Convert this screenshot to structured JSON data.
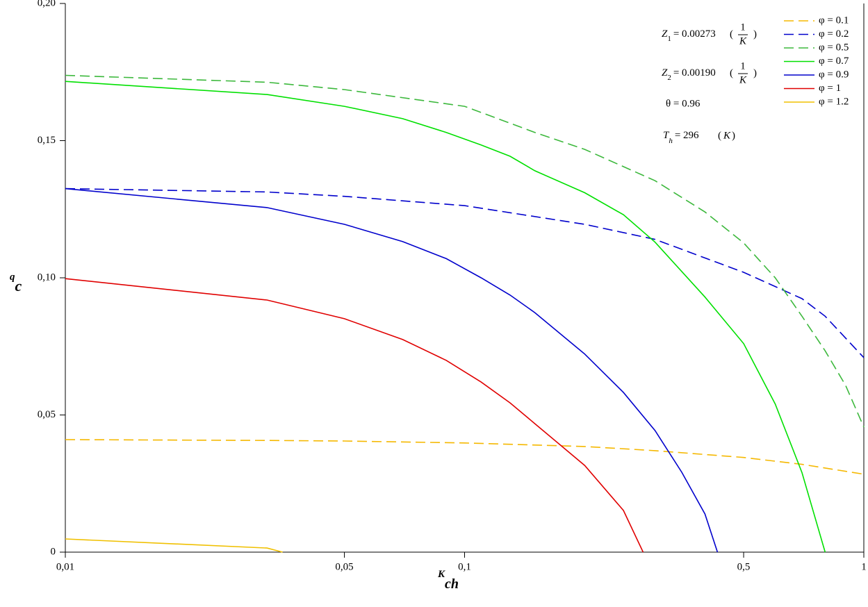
{
  "chart_data": {
    "type": "line",
    "x_label": {
      "text": "K",
      "sub": "ch"
    },
    "y_label": {
      "text": "q",
      "sub": "c"
    },
    "xscale": "log",
    "xlim": [
      0.01,
      1
    ],
    "xticks": [
      {
        "value": 0.01,
        "label": "0,01"
      },
      {
        "value": 0.05,
        "label": "0,05"
      },
      {
        "value": 0.1,
        "label": "0,1"
      },
      {
        "value": 0.5,
        "label": "0,5"
      },
      1
    ],
    "ylim": [
      0,
      0.2
    ],
    "yticks": [
      0,
      {
        "value": 0.05,
        "label": "0,05"
      },
      {
        "value": 0.1,
        "label": "0,10"
      },
      {
        "value": 0.15,
        "label": "0,15"
      },
      {
        "value": 0.2,
        "label": "0,20"
      }
    ],
    "legend": "upper right",
    "annotations": [
      {
        "symbol": "Z",
        "sub": "1",
        "value": "= 0.00273",
        "num": "1",
        "den": "K"
      },
      {
        "symbol": "Z",
        "sub": "2",
        "value": "= 0.00190",
        "num": "1",
        "den": "K"
      },
      {
        "text": "θ = 0.96"
      },
      {
        "symbol": "T",
        "sub": "h",
        "value": "= 296",
        "unit": "K"
      }
    ],
    "series": [
      {
        "name": "φ = 0.1",
        "color": "#f5b800",
        "dash": true,
        "x": [
          0.01,
          0.032,
          0.05,
          0.1,
          0.2,
          0.3,
          0.5,
          0.7,
          1
        ],
        "values": [
          0.041,
          0.0407,
          0.0405,
          0.0398,
          0.0385,
          0.037,
          0.0345,
          0.032,
          0.0284
        ]
      },
      {
        "name": "φ = 0.2",
        "color": "#0000cc",
        "dash": true,
        "x": [
          0.01,
          0.032,
          0.05,
          0.1,
          0.2,
          0.3,
          0.5,
          0.7,
          0.8,
          1
        ],
        "values": [
          0.1325,
          0.1313,
          0.1297,
          0.1263,
          0.1195,
          0.114,
          0.102,
          0.0924,
          0.086,
          0.0709
        ]
      },
      {
        "name": "φ = 0.5",
        "color": "#3cb83c",
        "dash": true,
        "x": [
          0.01,
          0.032,
          0.05,
          0.1,
          0.15,
          0.2,
          0.3,
          0.4,
          0.5,
          0.6,
          0.7,
          0.8,
          0.9,
          1
        ],
        "values": [
          0.1738,
          0.1713,
          0.1686,
          0.1625,
          0.153,
          0.1468,
          0.1354,
          0.124,
          0.1127,
          0.1,
          0.086,
          0.0734,
          0.0608,
          0.0456
        ]
      },
      {
        "name": "φ = 0.7",
        "color": "#00e000",
        "dash": false,
        "x": [
          0.01,
          0.032,
          0.05,
          0.07,
          0.09,
          0.11,
          0.13,
          0.15,
          0.2,
          0.25,
          0.3,
          0.4,
          0.5,
          0.6,
          0.7,
          0.8
        ],
        "values": [
          0.1716,
          0.1668,
          0.1625,
          0.158,
          0.153,
          0.1484,
          0.1443,
          0.139,
          0.131,
          0.123,
          0.113,
          0.093,
          0.076,
          0.054,
          0.029,
          0
        ]
      },
      {
        "name": "φ = 0.9",
        "color": "#0000cc",
        "dash": false,
        "x": [
          0.01,
          0.032,
          0.05,
          0.07,
          0.09,
          0.11,
          0.13,
          0.15,
          0.2,
          0.25,
          0.3,
          0.35,
          0.4,
          0.43
        ],
        "values": [
          0.1325,
          0.1256,
          0.1195,
          0.1132,
          0.107,
          0.1,
          0.0937,
          0.0873,
          0.0722,
          0.0582,
          0.0443,
          0.0291,
          0.0139,
          0
        ]
      },
      {
        "name": "φ = 1",
        "color": "#e00000",
        "dash": false,
        "x": [
          0.01,
          0.032,
          0.05,
          0.07,
          0.09,
          0.11,
          0.13,
          0.15,
          0.2,
          0.25,
          0.28
        ],
        "values": [
          0.0997,
          0.0919,
          0.0851,
          0.0775,
          0.0699,
          0.062,
          0.0544,
          0.0468,
          0.0316,
          0.0152,
          0
        ]
      },
      {
        "name": "φ = 1.2",
        "color": "#f0c000",
        "dash": false,
        "x": [
          0.01,
          0.032,
          0.035
        ],
        "values": [
          0.0048,
          0.0015,
          0
        ]
      }
    ]
  }
}
